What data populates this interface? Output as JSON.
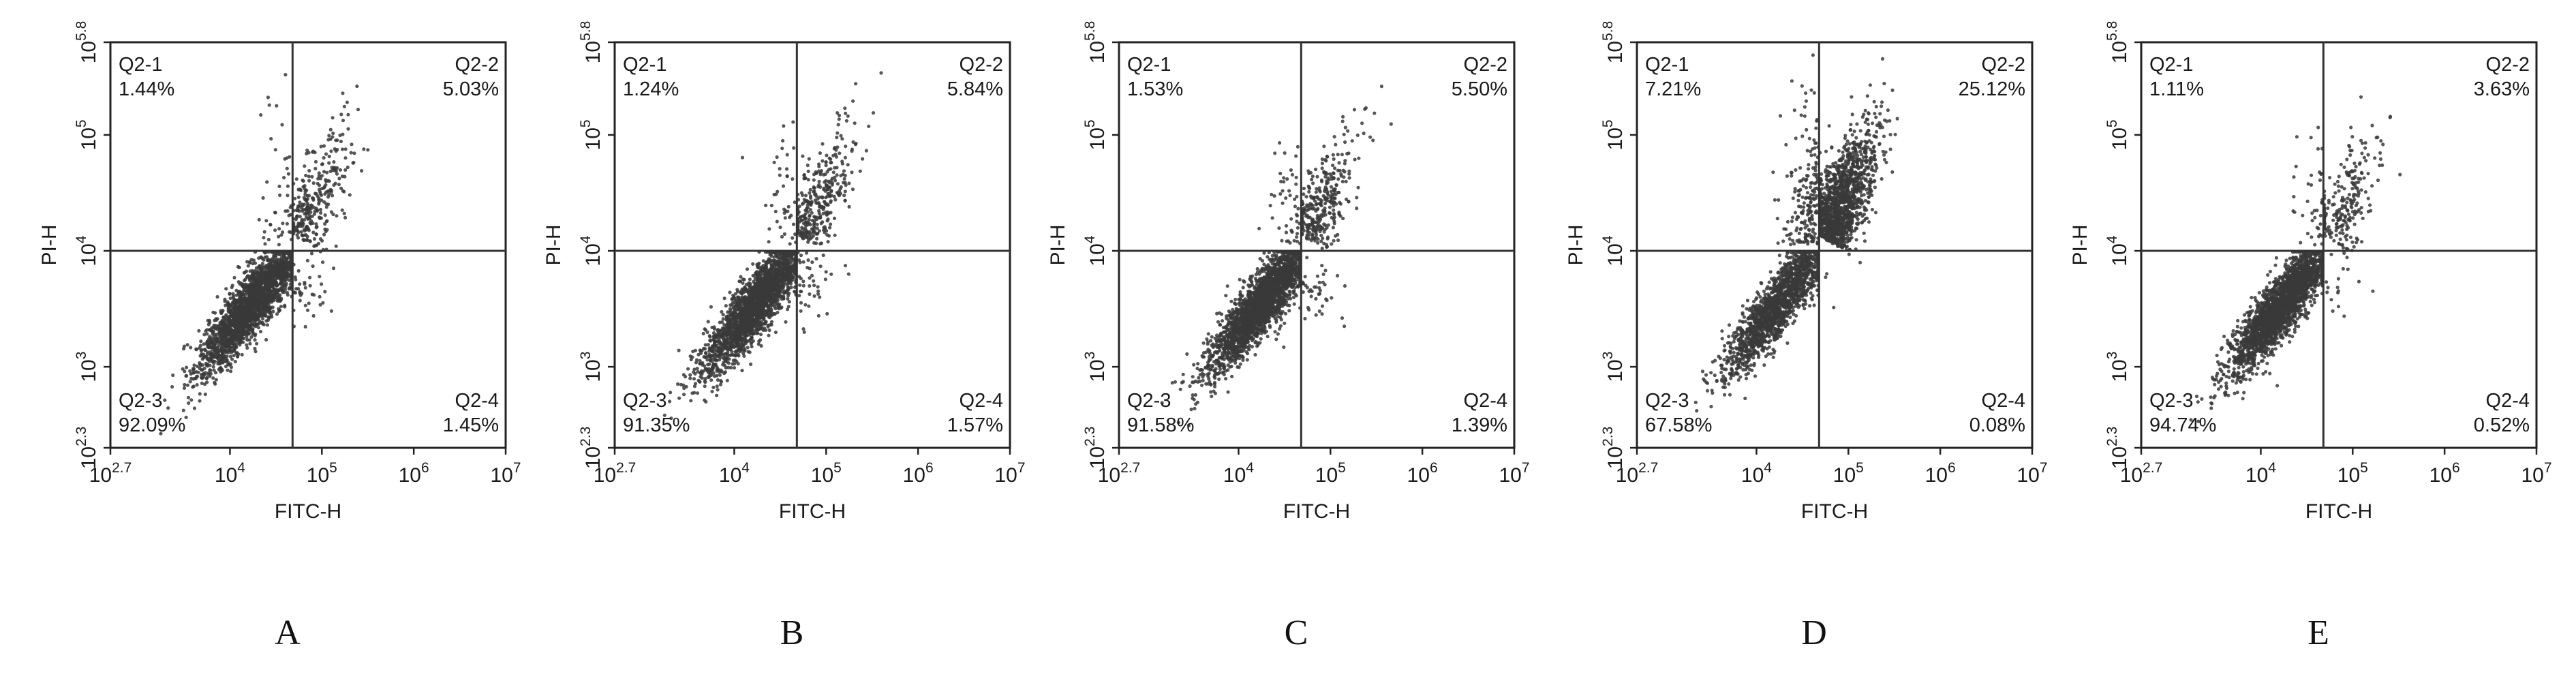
{
  "chart_data": [
    {
      "type": "scatter",
      "panel_label": "A",
      "xlabel": "FITC-H",
      "ylabel": "PI-H",
      "x_scale": "log",
      "y_scale": "log",
      "xlim": [
        500,
        10000000
      ],
      "ylim": [
        200,
        630000
      ],
      "x_ticks": [
        {
          "value": 500,
          "base": "10",
          "exp": "2.7"
        },
        {
          "value": 10000,
          "base": "10",
          "exp": "4"
        },
        {
          "value": 100000,
          "base": "10",
          "exp": "5"
        },
        {
          "value": 1000000,
          "base": "10",
          "exp": "6"
        },
        {
          "value": 10000000,
          "base": "10",
          "exp": "7"
        }
      ],
      "y_ticks": [
        {
          "value": 200,
          "base": "10",
          "exp": "2.3"
        },
        {
          "value": 1000,
          "base": "10",
          "exp": "3"
        },
        {
          "value": 10000,
          "base": "10",
          "exp": "4"
        },
        {
          "value": 100000,
          "base": "10",
          "exp": "5"
        },
        {
          "value": 630000,
          "base": "10",
          "exp": "5.8"
        }
      ],
      "gate": {
        "x": 48000,
        "y": 10000
      },
      "quadrants": [
        {
          "name": "Q2-1",
          "value": "1.44%"
        },
        {
          "name": "Q2-2",
          "value": "5.03%"
        },
        {
          "name": "Q2-3",
          "value": "92.09%"
        },
        {
          "name": "Q2-4",
          "value": "1.45%"
        }
      ],
      "grid": false,
      "legend": "none",
      "dot_color": "#3a3a3a"
    },
    {
      "type": "scatter",
      "panel_label": "B",
      "xlabel": "FITC-H",
      "ylabel": "PI-H",
      "x_scale": "log",
      "y_scale": "log",
      "xlim": [
        500,
        10000000
      ],
      "ylim": [
        200,
        630000
      ],
      "x_ticks": [
        {
          "value": 500,
          "base": "10",
          "exp": "2.7"
        },
        {
          "value": 10000,
          "base": "10",
          "exp": "4"
        },
        {
          "value": 100000,
          "base": "10",
          "exp": "5"
        },
        {
          "value": 1000000,
          "base": "10",
          "exp": "6"
        },
        {
          "value": 10000000,
          "base": "10",
          "exp": "7"
        }
      ],
      "y_ticks": [
        {
          "value": 200,
          "base": "10",
          "exp": "2.3"
        },
        {
          "value": 1000,
          "base": "10",
          "exp": "3"
        },
        {
          "value": 10000,
          "base": "10",
          "exp": "4"
        },
        {
          "value": 100000,
          "base": "10",
          "exp": "5"
        },
        {
          "value": 630000,
          "base": "10",
          "exp": "5.8"
        }
      ],
      "gate": {
        "x": 48000,
        "y": 10000
      },
      "quadrants": [
        {
          "name": "Q2-1",
          "value": "1.24%"
        },
        {
          "name": "Q2-2",
          "value": "5.84%"
        },
        {
          "name": "Q2-3",
          "value": "91.35%"
        },
        {
          "name": "Q2-4",
          "value": "1.57%"
        }
      ],
      "grid": false,
      "legend": "none",
      "dot_color": "#3a3a3a"
    },
    {
      "type": "scatter",
      "panel_label": "C",
      "xlabel": "FITC-H",
      "ylabel": "PI-H",
      "x_scale": "log",
      "y_scale": "log",
      "xlim": [
        500,
        10000000
      ],
      "ylim": [
        200,
        630000
      ],
      "x_ticks": [
        {
          "value": 500,
          "base": "10",
          "exp": "2.7"
        },
        {
          "value": 10000,
          "base": "10",
          "exp": "4"
        },
        {
          "value": 100000,
          "base": "10",
          "exp": "5"
        },
        {
          "value": 1000000,
          "base": "10",
          "exp": "6"
        },
        {
          "value": 10000000,
          "base": "10",
          "exp": "7"
        }
      ],
      "y_ticks": [
        {
          "value": 200,
          "base": "10",
          "exp": "2.3"
        },
        {
          "value": 1000,
          "base": "10",
          "exp": "3"
        },
        {
          "value": 10000,
          "base": "10",
          "exp": "4"
        },
        {
          "value": 100000,
          "base": "10",
          "exp": "5"
        },
        {
          "value": 630000,
          "base": "10",
          "exp": "5.8"
        }
      ],
      "gate": {
        "x": 48000,
        "y": 10000
      },
      "quadrants": [
        {
          "name": "Q2-1",
          "value": "1.53%"
        },
        {
          "name": "Q2-2",
          "value": "5.50%"
        },
        {
          "name": "Q2-3",
          "value": "91.58%"
        },
        {
          "name": "Q2-4",
          "value": "1.39%"
        }
      ],
      "grid": false,
      "legend": "none",
      "dot_color": "#3a3a3a"
    },
    {
      "type": "scatter",
      "panel_label": "D",
      "xlabel": "FITC-H",
      "ylabel": "PI-H",
      "x_scale": "log",
      "y_scale": "log",
      "xlim": [
        500,
        10000000
      ],
      "ylim": [
        200,
        630000
      ],
      "x_ticks": [
        {
          "value": 500,
          "base": "10",
          "exp": "2.7"
        },
        {
          "value": 10000,
          "base": "10",
          "exp": "4"
        },
        {
          "value": 100000,
          "base": "10",
          "exp": "5"
        },
        {
          "value": 1000000,
          "base": "10",
          "exp": "6"
        },
        {
          "value": 10000000,
          "base": "10",
          "exp": "7"
        }
      ],
      "y_ticks": [
        {
          "value": 200,
          "base": "10",
          "exp": "2.3"
        },
        {
          "value": 1000,
          "base": "10",
          "exp": "3"
        },
        {
          "value": 10000,
          "base": "10",
          "exp": "4"
        },
        {
          "value": 100000,
          "base": "10",
          "exp": "5"
        },
        {
          "value": 630000,
          "base": "10",
          "exp": "5.8"
        }
      ],
      "gate": {
        "x": 48000,
        "y": 10000
      },
      "quadrants": [
        {
          "name": "Q2-1",
          "value": "7.21%"
        },
        {
          "name": "Q2-2",
          "value": "25.12%"
        },
        {
          "name": "Q2-3",
          "value": "67.58%"
        },
        {
          "name": "Q2-4",
          "value": "0.08%"
        }
      ],
      "grid": false,
      "legend": "none",
      "dot_color": "#3a3a3a"
    },
    {
      "type": "scatter",
      "panel_label": "E",
      "xlabel": "FITC-H",
      "ylabel": "PI-H",
      "x_scale": "log",
      "y_scale": "log",
      "xlim": [
        500,
        10000000
      ],
      "ylim": [
        200,
        630000
      ],
      "x_ticks": [
        {
          "value": 500,
          "base": "10",
          "exp": "2.7"
        },
        {
          "value": 10000,
          "base": "10",
          "exp": "4"
        },
        {
          "value": 100000,
          "base": "10",
          "exp": "5"
        },
        {
          "value": 1000000,
          "base": "10",
          "exp": "6"
        },
        {
          "value": 10000000,
          "base": "10",
          "exp": "7"
        }
      ],
      "y_ticks": [
        {
          "value": 200,
          "base": "10",
          "exp": "2.3"
        },
        {
          "value": 1000,
          "base": "10",
          "exp": "3"
        },
        {
          "value": 10000,
          "base": "10",
          "exp": "4"
        },
        {
          "value": 100000,
          "base": "10",
          "exp": "5"
        },
        {
          "value": 630000,
          "base": "10",
          "exp": "5.8"
        }
      ],
      "gate": {
        "x": 48000,
        "y": 10000
      },
      "quadrants": [
        {
          "name": "Q2-1",
          "value": "1.11%"
        },
        {
          "name": "Q2-2",
          "value": "3.63%"
        },
        {
          "name": "Q2-3",
          "value": "94.74%"
        },
        {
          "name": "Q2-4",
          "value": "0.52%"
        }
      ],
      "grid": false,
      "legend": "none",
      "dot_color": "#3a3a3a"
    }
  ]
}
